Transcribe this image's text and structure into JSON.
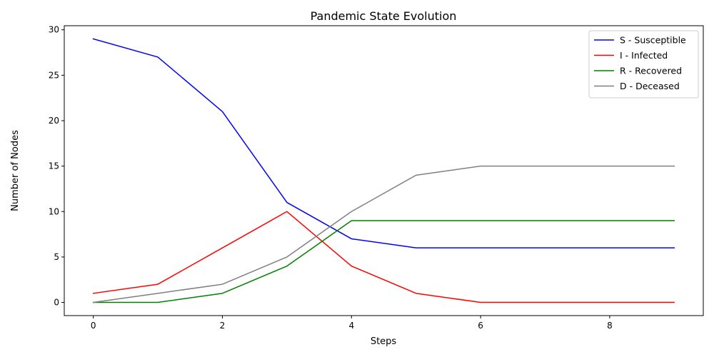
{
  "chart_data": {
    "type": "line",
    "title": "Pandemic State Evolution",
    "xlabel": "Steps",
    "ylabel": "Number of Nodes",
    "x": [
      0,
      1,
      2,
      3,
      4,
      5,
      6,
      7,
      8,
      9
    ],
    "xlim": [
      -0.45,
      9.45
    ],
    "ylim": [
      -1.45,
      30.45
    ],
    "xticks": [
      0,
      2,
      4,
      6,
      8
    ],
    "yticks": [
      0,
      5,
      10,
      15,
      20,
      25,
      30
    ],
    "grid": false,
    "legend_position": "top-right",
    "series": [
      {
        "name": "S - Susceptible",
        "color": "#0000ff",
        "values": [
          29,
          27,
          21,
          11,
          7,
          6,
          6,
          6,
          6,
          6
        ]
      },
      {
        "name": "I - Infected",
        "color": "#ff0000",
        "values": [
          1,
          2,
          6,
          10,
          4,
          1,
          0,
          0,
          0,
          0
        ]
      },
      {
        "name": "R - Recovered",
        "color": "#008000",
        "values": [
          0,
          0,
          1,
          4,
          9,
          9,
          9,
          9,
          9,
          9
        ]
      },
      {
        "name": "D - Deceased",
        "color": "#808080",
        "values": [
          0,
          1,
          2,
          5,
          10,
          14,
          15,
          15,
          15,
          15
        ]
      }
    ]
  }
}
